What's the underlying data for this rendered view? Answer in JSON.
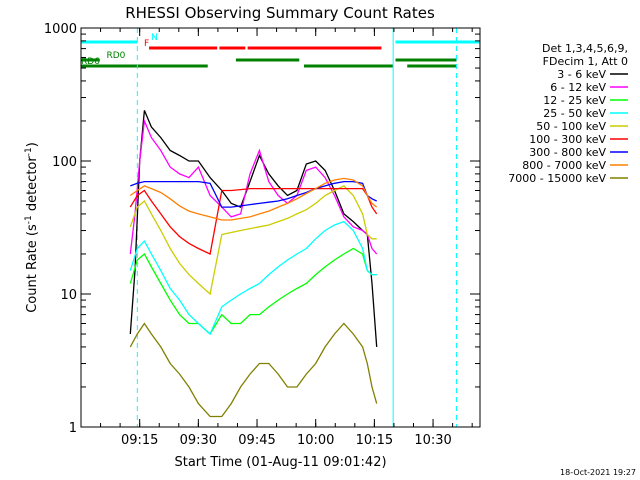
{
  "chart_data": {
    "type": "line",
    "title": "RHESSI Observing Summary Count Rates",
    "xlabel": "Start Time (01-Aug-11 09:01:42)",
    "ylabel_main": "Count Rate (s",
    "ylabel_sup1": "-1",
    "ylabel_mid": " detector",
    "ylabel_sup2": "-1",
    "ylabel_end": ")",
    "y_scale": "log",
    "ylim": [
      1,
      1000
    ],
    "xlim_minutes": [
      9.0,
      10.7
    ],
    "x_unit": "hours after 00:00 UT (09:00 = 9.0)",
    "x_ticks": [
      {
        "value": 9.25,
        "label": "09:15"
      },
      {
        "value": 9.5,
        "label": "09:30"
      },
      {
        "value": 9.75,
        "label": "09:45"
      },
      {
        "value": 10.0,
        "label": "10:00"
      },
      {
        "value": 10.25,
        "label": "10:15"
      },
      {
        "value": 10.5,
        "label": "10:30"
      }
    ],
    "y_ticks": [
      {
        "value": 1,
        "label": "1"
      },
      {
        "value": 10,
        "label": "10"
      },
      {
        "value": 100,
        "label": "100"
      },
      {
        "value": 1000,
        "label": "1000"
      }
    ],
    "legend_header": [
      "Det 1,3,4,5,6,9,",
      "FDecim 1, Att 0"
    ],
    "legend_placement": "right",
    "grid": false,
    "series": [
      {
        "name": "3 - 6 keV",
        "color": "#000000",
        "x": [
          9.21,
          9.23,
          9.25,
          9.27,
          9.3,
          9.34,
          9.38,
          9.42,
          9.46,
          9.5,
          9.55,
          9.6,
          9.64,
          9.68,
          9.72,
          9.76,
          9.8,
          9.84,
          9.88,
          9.92,
          9.96,
          10.0,
          10.04,
          10.08,
          10.12,
          10.16,
          10.2,
          10.22,
          10.24,
          10.26
        ],
        "y": [
          5,
          15,
          100,
          240,
          180,
          150,
          120,
          110,
          100,
          100,
          75,
          60,
          48,
          45,
          70,
          110,
          80,
          65,
          55,
          60,
          95,
          100,
          85,
          60,
          40,
          35,
          30,
          28,
          12,
          4
        ]
      },
      {
        "name": "6 - 12 keV",
        "color": "#ff00ff",
        "x": [
          9.21,
          9.23,
          9.25,
          9.27,
          9.3,
          9.34,
          9.38,
          9.42,
          9.46,
          9.5,
          9.55,
          9.6,
          9.64,
          9.68,
          9.72,
          9.76,
          9.8,
          9.84,
          9.88,
          9.92,
          9.96,
          10.0,
          10.04,
          10.08,
          10.12,
          10.16,
          10.2,
          10.22,
          10.24,
          10.26
        ],
        "y": [
          20,
          40,
          100,
          200,
          150,
          120,
          90,
          80,
          75,
          90,
          55,
          45,
          38,
          40,
          80,
          120,
          70,
          55,
          48,
          55,
          85,
          90,
          75,
          55,
          38,
          32,
          30,
          28,
          22,
          20
        ]
      },
      {
        "name": "12 - 25 keV",
        "color": "#00ff00",
        "x": [
          9.21,
          9.24,
          9.27,
          9.3,
          9.34,
          9.38,
          9.42,
          9.46,
          9.5,
          9.55,
          9.6,
          9.64,
          9.68,
          9.72,
          9.76,
          9.8,
          9.84,
          9.88,
          9.92,
          9.96,
          10.0,
          10.04,
          10.08,
          10.12,
          10.16,
          10.2,
          10.22,
          10.24,
          10.26
        ],
        "y": [
          12,
          18,
          20,
          16,
          12,
          9,
          7,
          6,
          6,
          5,
          7,
          6,
          6,
          7,
          7,
          8,
          9,
          10,
          11,
          12,
          14,
          16,
          18,
          20,
          22,
          20,
          15,
          14,
          14
        ]
      },
      {
        "name": "25 - 50 keV",
        "color": "#00ffff",
        "x": [
          9.21,
          9.24,
          9.27,
          9.3,
          9.34,
          9.38,
          9.42,
          9.46,
          9.5,
          9.55,
          9.6,
          9.64,
          9.68,
          9.72,
          9.76,
          9.8,
          9.84,
          9.88,
          9.92,
          9.96,
          10.0,
          10.04,
          10.08,
          10.12,
          10.16,
          10.2,
          10.22,
          10.24,
          10.26
        ],
        "y": [
          15,
          22,
          25,
          20,
          15,
          11,
          9,
          7,
          6,
          5,
          8,
          9,
          10,
          11,
          12,
          14,
          16,
          18,
          20,
          22,
          26,
          30,
          33,
          35,
          30,
          22,
          15,
          14,
          14
        ]
      },
      {
        "name": "50 - 100 keV",
        "color": "#cccc00",
        "x": [
          9.21,
          9.24,
          9.27,
          9.3,
          9.34,
          9.38,
          9.42,
          9.46,
          9.5,
          9.55,
          9.6,
          9.64,
          9.68,
          9.72,
          9.76,
          9.8,
          9.84,
          9.88,
          9.92,
          9.96,
          10.0,
          10.04,
          10.08,
          10.12,
          10.16,
          10.2,
          10.22,
          10.24,
          10.26
        ],
        "y": [
          32,
          45,
          50,
          40,
          30,
          22,
          17,
          14,
          12,
          10,
          28,
          29,
          30,
          31,
          32,
          33,
          35,
          37,
          40,
          43,
          48,
          55,
          60,
          65,
          55,
          40,
          28,
          26,
          26
        ]
      },
      {
        "name": "100 - 300 keV",
        "color": "#ff0000",
        "x": [
          9.21,
          9.24,
          9.27,
          9.3,
          9.34,
          9.38,
          9.42,
          9.46,
          9.5,
          9.55,
          9.6,
          9.64,
          9.68,
          9.72,
          9.76,
          9.8,
          9.84,
          9.88,
          9.92,
          9.96,
          10.0,
          10.04,
          10.08,
          10.12,
          10.16,
          10.2,
          10.22,
          10.24,
          10.26
        ],
        "y": [
          45,
          55,
          60,
          50,
          40,
          32,
          27,
          24,
          22,
          20,
          60,
          60,
          61,
          62,
          62,
          62,
          62,
          62,
          62,
          62,
          62,
          62,
          62,
          62,
          62,
          62,
          55,
          45,
          40
        ]
      },
      {
        "name": "300 - 800 keV",
        "color": "#0000ff",
        "x": [
          9.21,
          9.24,
          9.27,
          9.3,
          9.34,
          9.38,
          9.42,
          9.46,
          9.5,
          9.55,
          9.6,
          9.64,
          9.68,
          9.72,
          9.76,
          9.8,
          9.84,
          9.88,
          9.92,
          9.96,
          10.0,
          10.04,
          10.08,
          10.12,
          10.16,
          10.2,
          10.22,
          10.24,
          10.26
        ],
        "y": [
          65,
          68,
          70,
          70,
          70,
          70,
          70,
          70,
          70,
          68,
          45,
          45,
          46,
          47,
          48,
          49,
          50,
          52,
          55,
          58,
          62,
          65,
          68,
          70,
          70,
          68,
          55,
          52,
          50
        ]
      },
      {
        "name": "800 - 7000 keV",
        "color": "#ff8000",
        "x": [
          9.21,
          9.24,
          9.27,
          9.3,
          9.34,
          9.38,
          9.42,
          9.46,
          9.5,
          9.55,
          9.6,
          9.64,
          9.68,
          9.72,
          9.76,
          9.8,
          9.84,
          9.88,
          9.92,
          9.96,
          10.0,
          10.04,
          10.08,
          10.12,
          10.16,
          10.2,
          10.22,
          10.24,
          10.26
        ],
        "y": [
          55,
          60,
          65,
          62,
          58,
          52,
          46,
          42,
          40,
          38,
          36,
          36,
          37,
          38,
          40,
          42,
          45,
          48,
          52,
          57,
          62,
          68,
          72,
          74,
          72,
          65,
          55,
          48,
          45
        ]
      },
      {
        "name": "7000 - 15000 keV",
        "color": "#808000",
        "x": [
          9.21,
          9.24,
          9.27,
          9.3,
          9.34,
          9.38,
          9.42,
          9.46,
          9.5,
          9.55,
          9.6,
          9.64,
          9.68,
          9.72,
          9.76,
          9.8,
          9.84,
          9.88,
          9.92,
          9.96,
          10.0,
          10.04,
          10.08,
          10.12,
          10.16,
          10.2,
          10.22,
          10.24,
          10.26
        ],
        "y": [
          4,
          5,
          6,
          5,
          4,
          3,
          2.5,
          2,
          1.5,
          1.2,
          1.2,
          1.5,
          2,
          2.5,
          3,
          3,
          2.5,
          2,
          2,
          2.5,
          3,
          4,
          5,
          6,
          5,
          4,
          3,
          2,
          1.5
        ]
      }
    ],
    "flag_bars": [
      {
        "label": "N",
        "color": "#00ffff",
        "label_x": 9.29,
        "segments": [
          [
            9.0,
            9.24
          ],
          [
            10.34,
            10.7
          ]
        ]
      },
      {
        "label": "F",
        "color": "#ff0000",
        "label_x": 9.26,
        "segments": [
          [
            9.29,
            9.58
          ],
          [
            9.59,
            9.7
          ],
          [
            9.71,
            10.28
          ]
        ]
      },
      {
        "label": "RD0",
        "color": "#008000",
        "label_x": 9.1,
        "segments": [
          [
            9.0,
            9.08
          ],
          [
            9.66,
            9.93
          ],
          [
            10.34,
            10.6
          ]
        ]
      },
      {
        "label": "RD6",
        "color": "#008000",
        "label_x": 9.0,
        "segments": [
          [
            9.0,
            9.54
          ],
          [
            9.95,
            10.33
          ],
          [
            10.39,
            10.6
          ]
        ]
      }
    ],
    "vertical_markers": [
      {
        "x": 9.24,
        "color": "#00ffff",
        "style": "dashed"
      },
      {
        "x": 10.33,
        "color": "#00ffff",
        "style": "solid"
      },
      {
        "x": 10.6,
        "color": "#00ffff",
        "style": "dashed"
      }
    ]
  },
  "footer": {
    "timestamp": "18-Oct-2021 19:27"
  }
}
